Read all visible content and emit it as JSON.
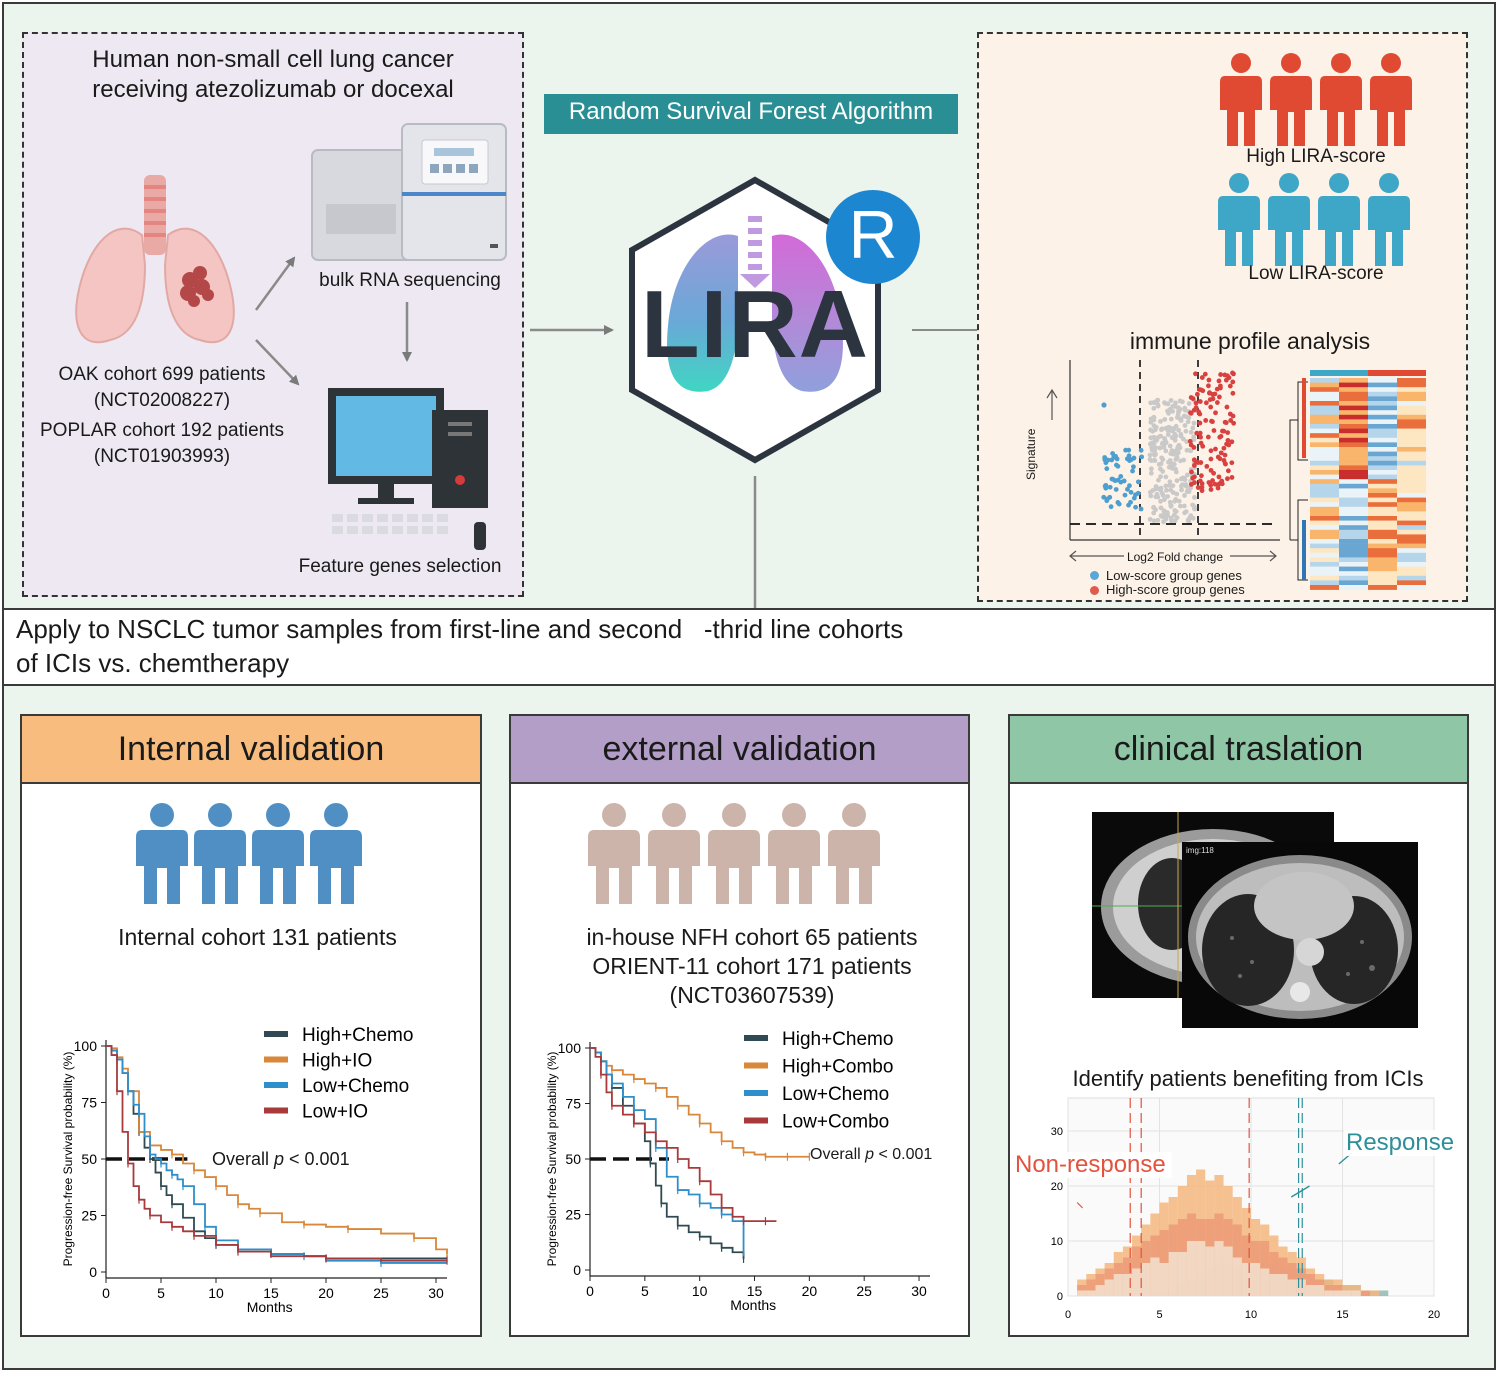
{
  "top": {
    "left_box": {
      "title_line1": "Human non-small cell lung cancer",
      "title_line2": "receiving atezolizumab or docexal",
      "rna_label": "bulk RNA sequencing",
      "feature_label": "Feature genes selection",
      "oak_line1": "OAK cohort 699 patients",
      "oak_line2": "(NCT02008227)",
      "poplar_line1": "POPLAR cohort 192 patients",
      "poplar_line2": "(NCT01903993)"
    },
    "algorithm_label": "Random Survival Forest Algorithm",
    "logo_text": "LIRA",
    "r_badge": "R",
    "right_box": {
      "high_label": "High LIRA-score",
      "low_label": "Low LIRA-score",
      "immune_label": "immune profile analysis",
      "volcano_ylabel": "Signature",
      "volcano_xlabel": "Log2 Fold change",
      "legend_low": "Low-score group genes",
      "legend_high": "High-score group genes"
    }
  },
  "apply_text_line1": "Apply to NSCLC tumor samples from first-line and second   -thrid line cohorts",
  "apply_text_line2": "of ICIs vs. chemtherapy",
  "internal": {
    "title": "Internal validation",
    "header_color": "#f8bd7e",
    "cohort": "Internal cohort 131 patients",
    "pvalue_prefix": "Overall ",
    "pvalue_p": "p",
    "pvalue_suffix": " < 0.001"
  },
  "external": {
    "title": "external validation",
    "header_color": "#b39ec7",
    "cohort_line1": "in-house NFH cohort 65 patients",
    "cohort_line2": "ORIENT-11 cohort 171 patients",
    "cohort_line3": "(NCT03607539)",
    "pvalue_prefix": "Overall ",
    "pvalue_p": "p",
    "pvalue_suffix": " < 0.001"
  },
  "clinical": {
    "title": "clinical traslation",
    "header_color": "#8fc7a6",
    "identify_label": "Identify patients benefiting from ICIs",
    "nonresponse_label": "Non-response",
    "response_label": "Response",
    "ct_label": "img:118"
  },
  "chart_data": [
    {
      "type": "line",
      "chart": "internal-km",
      "xlabel": "Months",
      "ylabel": "Progression-free Survival probability (%)",
      "xlim": [
        0,
        31
      ],
      "ylim": [
        0,
        100
      ],
      "xticks": [
        0,
        5,
        10,
        15,
        20,
        25,
        30
      ],
      "yticks": [
        0,
        25,
        50,
        75,
        100
      ],
      "legend_position": "top-right",
      "series": [
        {
          "name": "High+Chemo",
          "color": "#2f4a52",
          "x": [
            0,
            0.5,
            1,
            1.5,
            2,
            2.5,
            3,
            3.5,
            4,
            4.5,
            5,
            5.5,
            6,
            7,
            8,
            9,
            10,
            12,
            15,
            18,
            20,
            25,
            31
          ],
          "y": [
            100,
            98,
            94,
            88,
            80,
            70,
            62,
            55,
            50,
            44,
            38,
            34,
            30,
            24,
            18,
            15,
            12,
            10,
            8,
            7,
            6,
            6,
            6
          ]
        },
        {
          "name": "High+IO",
          "color": "#d9873a",
          "x": [
            0,
            0.5,
            1,
            1.5,
            2,
            3,
            4,
            5,
            6,
            7,
            8,
            9,
            10,
            11,
            12,
            13,
            14,
            16,
            18,
            20,
            22,
            25,
            28,
            30,
            31
          ],
          "y": [
            100,
            99,
            95,
            90,
            80,
            62,
            56,
            54,
            52,
            48,
            45,
            42,
            38,
            34,
            30,
            28,
            26,
            22,
            21,
            20,
            19,
            17,
            15,
            10,
            8
          ]
        },
        {
          "name": "Low+Chemo",
          "color": "#2e8fca",
          "x": [
            0,
            0.5,
            1,
            1.5,
            2,
            2.5,
            3,
            3.5,
            4,
            4.5,
            5,
            5.5,
            6,
            6.5,
            7,
            8,
            9,
            10,
            12,
            15,
            18,
            20,
            25,
            31
          ],
          "y": [
            100,
            98,
            94,
            88,
            80,
            74,
            70,
            60,
            52,
            50,
            48,
            45,
            43,
            41,
            38,
            30,
            20,
            14,
            10,
            8,
            7,
            5,
            4,
            4
          ]
        },
        {
          "name": "Low+IO",
          "color": "#a83a3c",
          "x": [
            0,
            0.5,
            1,
            1.5,
            2,
            2.5,
            3,
            3.5,
            4,
            5,
            6,
            7,
            8,
            10,
            12,
            15,
            20,
            25,
            31
          ],
          "y": [
            100,
            96,
            80,
            62,
            48,
            38,
            32,
            28,
            25,
            22,
            20,
            18,
            16,
            12,
            9,
            7,
            6,
            5,
            5
          ]
        }
      ],
      "median_line_y": 50
    },
    {
      "type": "line",
      "chart": "external-km",
      "xlabel": "Months",
      "ylabel": "Progression-free Survival probability (%)",
      "xlim": [
        0,
        31
      ],
      "ylim": [
        0,
        100
      ],
      "xticks": [
        0,
        5,
        10,
        15,
        20,
        25,
        30
      ],
      "yticks": [
        0,
        25,
        50,
        75,
        100
      ],
      "legend_position": "top-right",
      "series": [
        {
          "name": "High+Chemo",
          "color": "#2f4a52",
          "x": [
            0,
            0.5,
            1,
            1.5,
            2,
            3,
            4,
            5,
            5.5,
            6,
            6.5,
            7,
            8,
            9,
            10,
            11,
            12,
            13,
            14
          ],
          "y": [
            100,
            98,
            94,
            88,
            82,
            74,
            66,
            58,
            48,
            38,
            30,
            24,
            20,
            17,
            15,
            12,
            10,
            8,
            5
          ]
        },
        {
          "name": "High+Combo",
          "color": "#d9873a",
          "x": [
            0,
            0.5,
            1,
            1.5,
            2,
            3,
            4,
            5,
            6,
            7,
            8,
            9,
            10,
            11,
            12,
            13,
            14,
            15,
            16,
            17,
            18,
            19,
            20
          ],
          "y": [
            100,
            98,
            94,
            92,
            90,
            88,
            86,
            84,
            82,
            78,
            74,
            70,
            66,
            62,
            58,
            55,
            53,
            52,
            51,
            51,
            51,
            51,
            51
          ]
        },
        {
          "name": "Low+Chemo",
          "color": "#2e8fca",
          "x": [
            0,
            0.5,
            1,
            1.5,
            2,
            3,
            4,
            5,
            6,
            7,
            8,
            9,
            10,
            11,
            12,
            13,
            14
          ],
          "y": [
            100,
            98,
            94,
            88,
            84,
            78,
            72,
            68,
            55,
            42,
            36,
            34,
            30,
            28,
            25,
            22,
            8
          ]
        },
        {
          "name": "Low+Combo",
          "color": "#a83a3c",
          "x": [
            0,
            0.5,
            1,
            1.5,
            2,
            3,
            4,
            5,
            6,
            7,
            8,
            9,
            10,
            11,
            12,
            13,
            14,
            15,
            16,
            17
          ],
          "y": [
            100,
            96,
            88,
            80,
            74,
            70,
            66,
            62,
            58,
            55,
            50,
            46,
            40,
            34,
            28,
            24,
            22,
            22,
            22,
            22
          ]
        }
      ],
      "median_line_y": 50
    },
    {
      "type": "bar",
      "chart": "clinical-histogram",
      "xlim": [
        0,
        20
      ],
      "ylim": [
        0,
        36
      ],
      "xticks": [
        0,
        5,
        10,
        15,
        20
      ],
      "yticks": [
        0,
        10,
        20,
        30
      ],
      "bin_start": 0.5,
      "bin_width": 0.5,
      "series": [
        {
          "name": "",
          "color": "#f2e0cf",
          "values": [
            1,
            1,
            2,
            3,
            4,
            4,
            5,
            6,
            7,
            6,
            8,
            8,
            10,
            10,
            9,
            10,
            9,
            7,
            6,
            6,
            5,
            4,
            4,
            3,
            3,
            2,
            2,
            1,
            1,
            1,
            1,
            0,
            0,
            0,
            0,
            0,
            0,
            0
          ]
        },
        {
          "name": "",
          "color": "#ec9a78",
          "values": [
            2,
            3,
            4,
            5,
            6,
            7,
            9,
            10,
            11,
            12,
            13,
            14,
            15,
            14,
            14,
            15,
            14,
            13,
            11,
            10,
            10,
            8,
            7,
            6,
            5,
            4,
            3,
            2,
            2,
            1,
            1,
            1,
            0,
            0,
            0,
            0,
            0,
            0
          ]
        },
        {
          "name": "",
          "color": "#f5b67c",
          "values": [
            3,
            4,
            5,
            6,
            8,
            9,
            11,
            13,
            15,
            17,
            18,
            20,
            22,
            23,
            21,
            22,
            20,
            18,
            16,
            14,
            13,
            11,
            9,
            8,
            7,
            5,
            4,
            3,
            3,
            2,
            2,
            1,
            1,
            0,
            0,
            0,
            0,
            0
          ]
        },
        {
          "name": "",
          "color": "#8fb8b4",
          "values": [
            0,
            0,
            0,
            0,
            0,
            0,
            0,
            0,
            1,
            1,
            1,
            2,
            3,
            4,
            5,
            6,
            6,
            5,
            4,
            5,
            6,
            6,
            5,
            5,
            4,
            4,
            3,
            3,
            2,
            2,
            2,
            1,
            1,
            1,
            0,
            0,
            0,
            0
          ]
        }
      ]
    }
  ]
}
